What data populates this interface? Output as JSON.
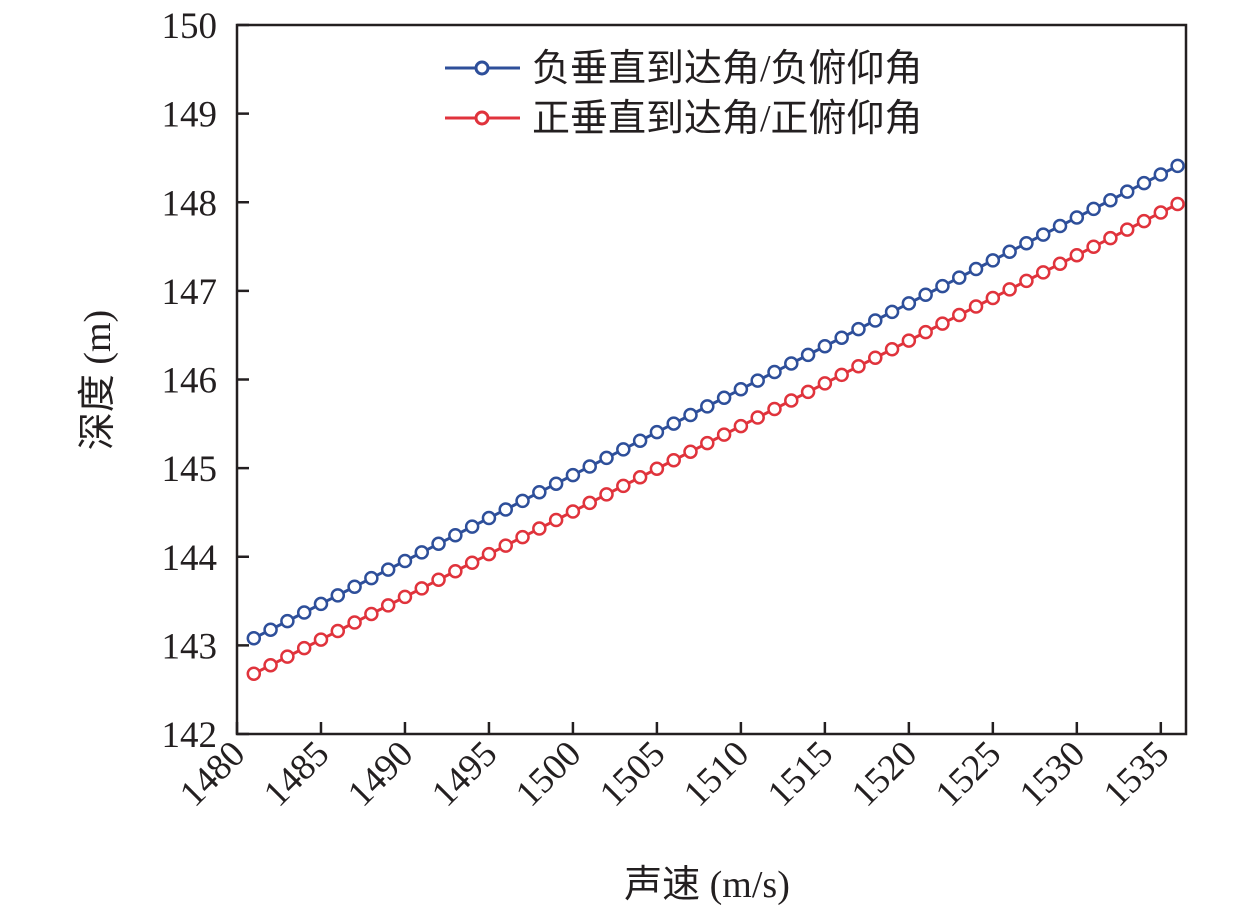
{
  "chart_data": {
    "type": "line",
    "xlabel": "声速 (m/s)",
    "ylabel": "深度 (m)",
    "xlim": [
      1480,
      1536.5
    ],
    "ylim": [
      142,
      150
    ],
    "x_ticks": [
      "1480",
      "1485",
      "1490",
      "1495",
      "1500",
      "1505",
      "1510",
      "1515",
      "1520",
      "1525",
      "1530",
      "1535"
    ],
    "y_ticks": [
      "142",
      "143",
      "144",
      "145",
      "146",
      "147",
      "148",
      "149",
      "150"
    ],
    "legend_position": "top-right",
    "grid": false,
    "x_start": 1481,
    "x_step": 1,
    "x_count": 56,
    "series": [
      {
        "name": "负垂直到达角/负俯仰角",
        "color": "#2e4f9a",
        "marker": "circle-open",
        "y_start": 143.08,
        "y_end": 148.41
      },
      {
        "name": "正垂直到达角/正俯仰角",
        "color": "#e0333c",
        "marker": "circle-open",
        "y_start": 142.68,
        "y_end": 147.98
      }
    ]
  }
}
